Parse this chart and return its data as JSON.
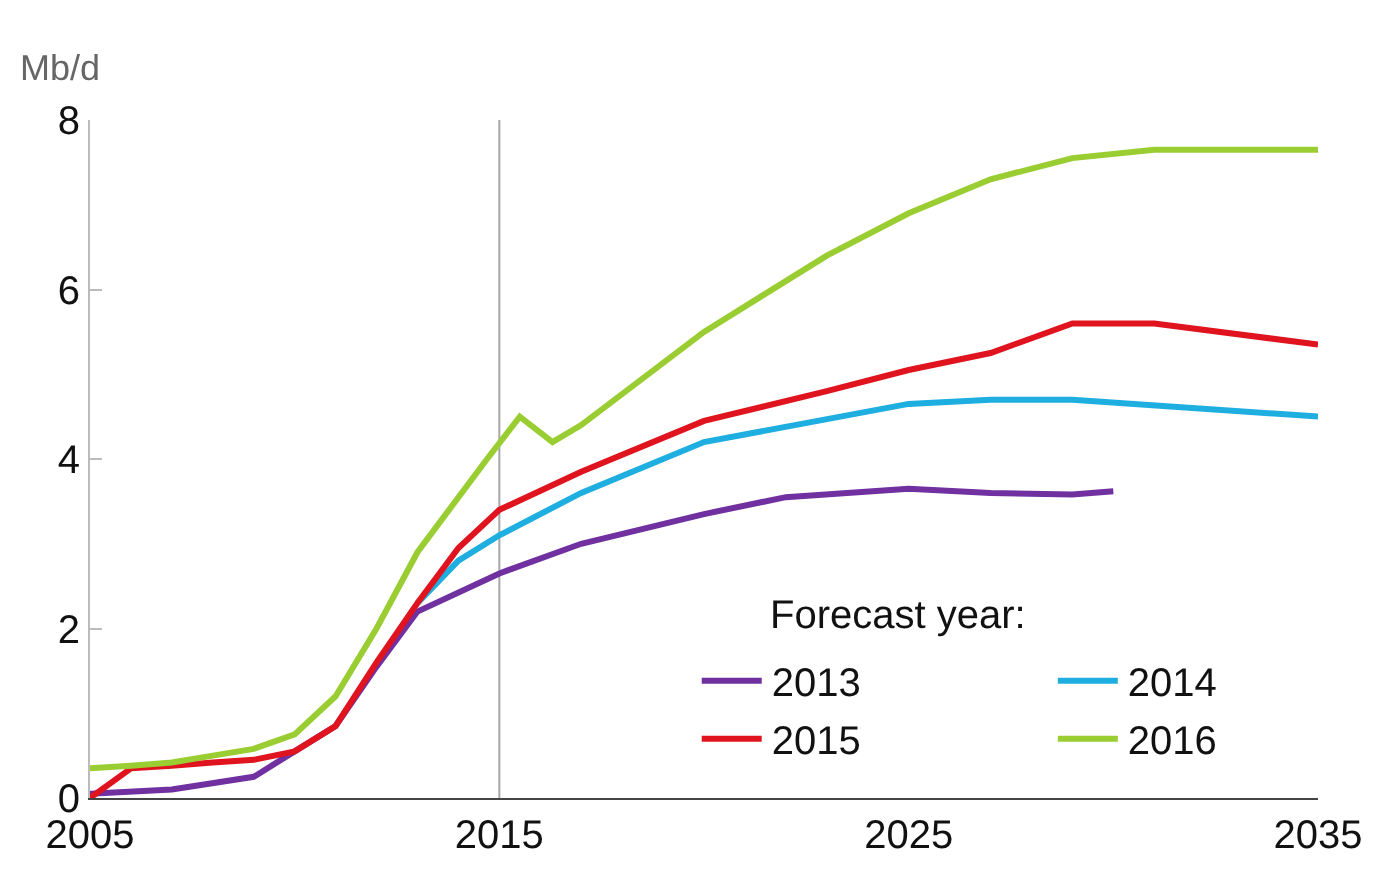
{
  "chart_data": {
    "type": "line",
    "ylabel": "Mb/d",
    "legend_title": "Forecast year:",
    "legend": "bottom right",
    "grid": false,
    "xlim": [
      2005,
      2035
    ],
    "xticks": [
      2005,
      2015,
      2025,
      2035
    ],
    "ylim": [
      0,
      8
    ],
    "yticks": [
      0,
      2,
      4,
      6,
      8
    ],
    "ref_lines": [
      {
        "axis": "x",
        "value": 2015,
        "color": "#a6a6a6"
      }
    ],
    "series": [
      {
        "name": "2013",
        "color": "#7030a0",
        "x": [
          2005,
          2007,
          2009,
          2010,
          2011,
          2012,
          2013,
          2015,
          2017,
          2020,
          2022,
          2025,
          2027,
          2029,
          2030
        ],
        "values": [
          0.05,
          0.1,
          0.25,
          0.55,
          0.85,
          1.55,
          2.2,
          2.65,
          3.0,
          3.35,
          3.55,
          3.65,
          3.6,
          3.58,
          3.62
        ]
      },
      {
        "name": "2014",
        "color": "#1eaee0",
        "x": [
          2013,
          2014,
          2015,
          2017,
          2020,
          2025,
          2027,
          2029,
          2035
        ],
        "values": [
          2.3,
          2.8,
          3.1,
          3.6,
          4.2,
          4.65,
          4.7,
          4.7,
          4.5
        ]
      },
      {
        "name": "2015",
        "color": "#e0141e",
        "x": [
          2005,
          2006,
          2007,
          2008,
          2009,
          2010,
          2011,
          2012,
          2013,
          2014,
          2015,
          2017,
          2020,
          2023,
          2025,
          2027,
          2029,
          2031,
          2035
        ],
        "values": [
          0,
          0.35,
          0.38,
          0.42,
          0.45,
          0.55,
          0.85,
          1.6,
          2.3,
          2.95,
          3.4,
          3.85,
          4.45,
          4.8,
          5.05,
          5.25,
          5.6,
          5.6,
          5.35
        ]
      },
      {
        "name": "2016",
        "color": "#9acd32",
        "x": [
          2005,
          2006,
          2007,
          2008,
          2009,
          2010,
          2011,
          2012,
          2013,
          2014.7,
          2015.5,
          2016.3,
          2017,
          2020,
          2023,
          2025,
          2027,
          2029,
          2031,
          2035
        ],
        "values": [
          0.35,
          0.38,
          0.42,
          0.5,
          0.58,
          0.75,
          1.2,
          2.0,
          2.9,
          4.0,
          4.5,
          4.2,
          4.4,
          5.5,
          6.4,
          6.9,
          7.3,
          7.55,
          7.65,
          7.65
        ]
      }
    ]
  }
}
